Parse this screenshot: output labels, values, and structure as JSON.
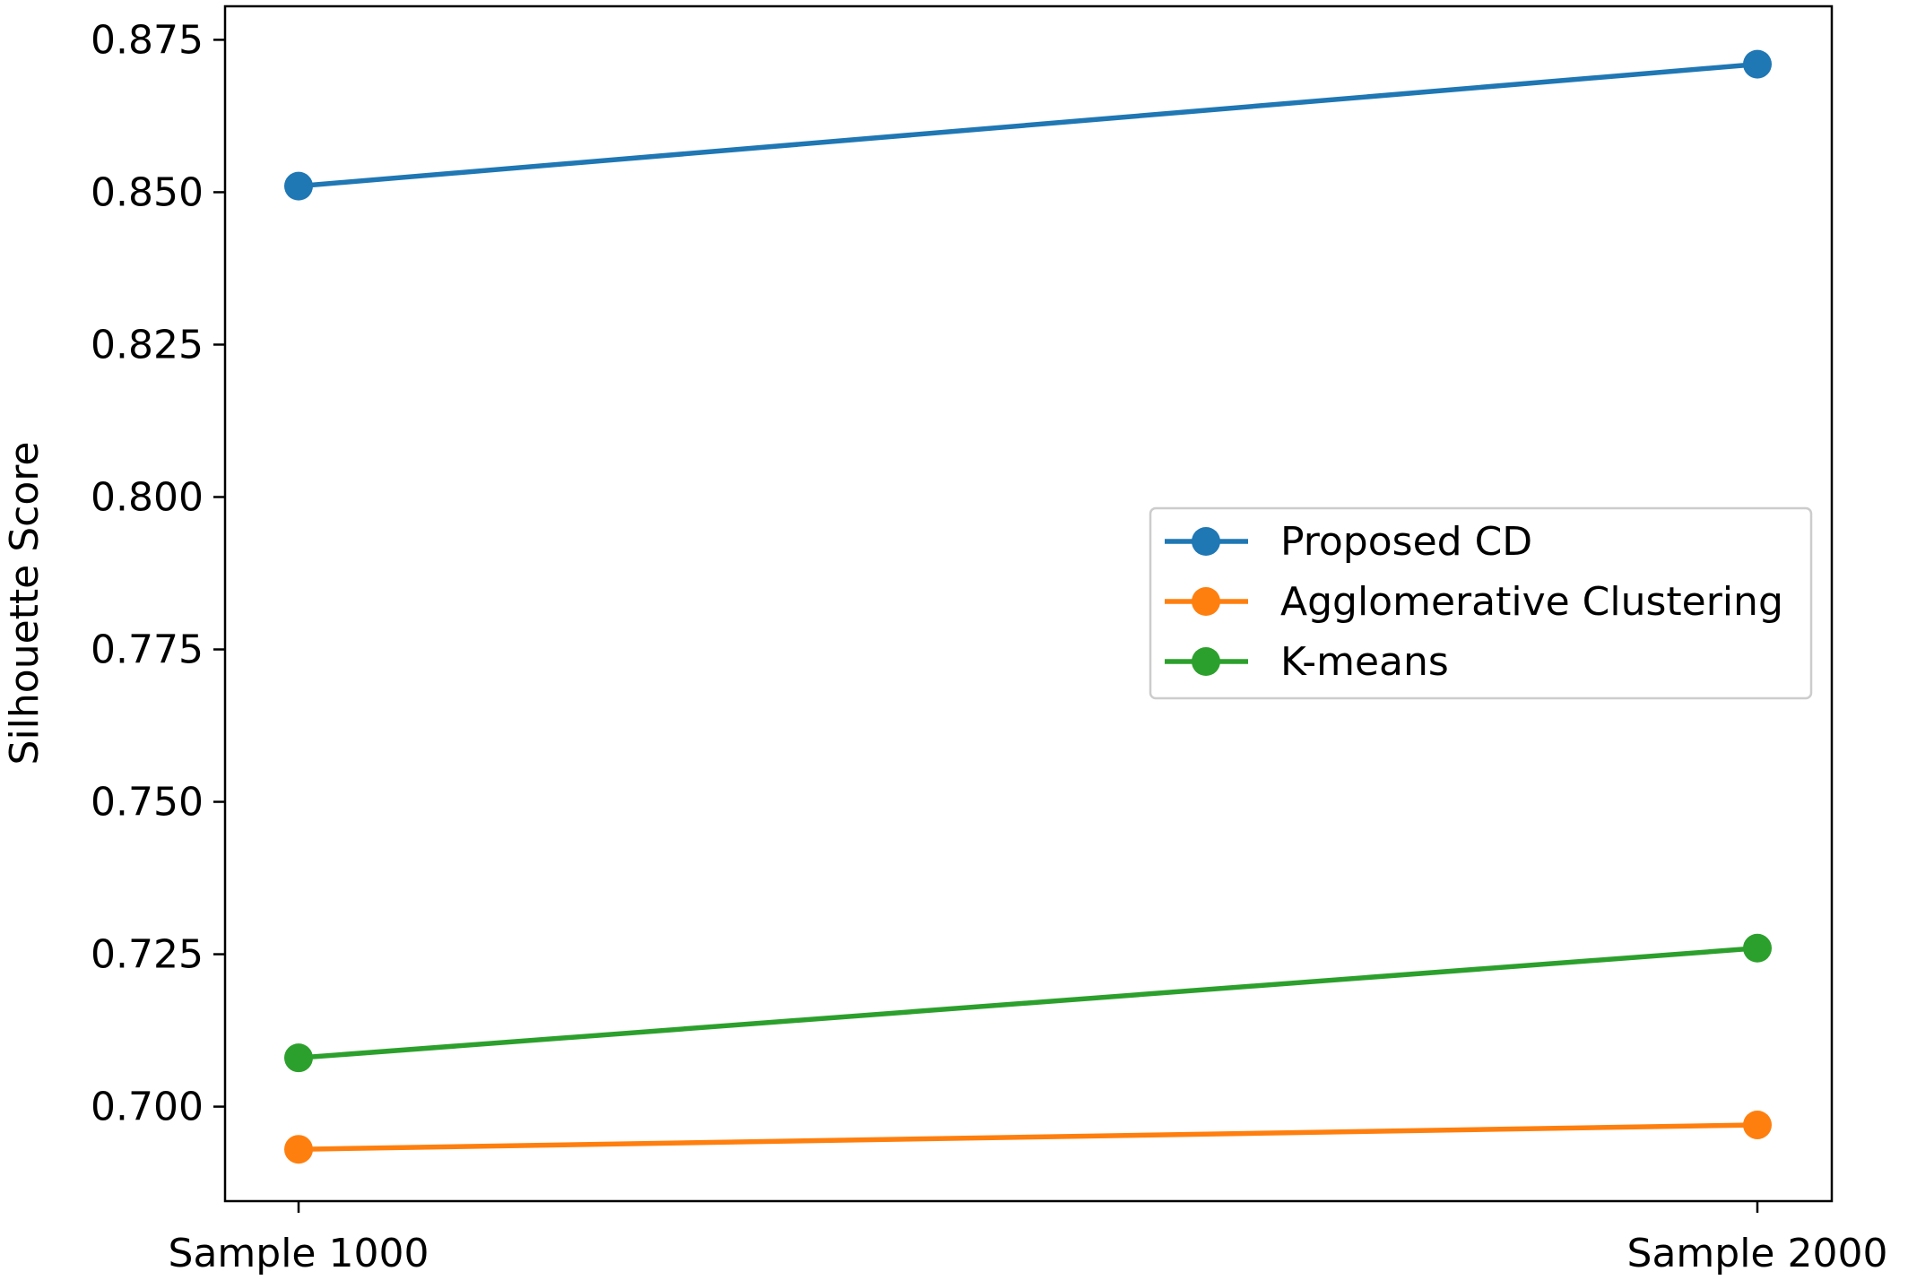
{
  "chart_data": {
    "type": "line",
    "title": "",
    "xlabel": "",
    "ylabel": "Silhouette Score",
    "categories": [
      "Sample 1000",
      "Sample 2000"
    ],
    "ylim": [
      0.6845,
      0.8805
    ],
    "yticks": [
      "0.700",
      "0.725",
      "0.750",
      "0.775",
      "0.800",
      "0.825",
      "0.850",
      "0.875"
    ],
    "grid": false,
    "legend_position": "center-right",
    "series": [
      {
        "name": "Proposed CD",
        "values": [
          0.851,
          0.871
        ],
        "color": "#1f77b4"
      },
      {
        "name": "Agglomerative Clustering",
        "values": [
          0.693,
          0.697
        ],
        "color": "#ff7f0e"
      },
      {
        "name": "K-means",
        "values": [
          0.708,
          0.726
        ],
        "color": "#2ca02c"
      }
    ]
  }
}
